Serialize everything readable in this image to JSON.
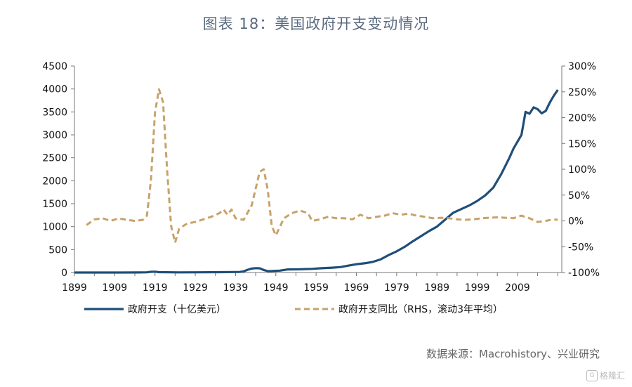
{
  "chart_data": {
    "type": "line",
    "title": "图表 18：美国政府开支变动情况",
    "source": "数据来源：Macrohistory、兴业研究",
    "watermark": "格隆汇",
    "x_ticks": [
      "1899",
      "1909",
      "1919",
      "1929",
      "1939",
      "1949",
      "1959",
      "1969",
      "1979",
      "1989",
      "1999",
      "2009"
    ],
    "xlim": [
      1899,
      2020
    ],
    "y_left": {
      "ylim": [
        0,
        4500
      ],
      "ticks": [
        "0",
        "500",
        "1000",
        "1500",
        "2000",
        "2500",
        "3000",
        "3500",
        "4000",
        "4500"
      ]
    },
    "y_right": {
      "ylim": [
        -100,
        300
      ],
      "ticks": [
        "-100%",
        "-50%",
        "0%",
        "50%",
        "100%",
        "150%",
        "200%",
        "250%",
        "300%"
      ]
    },
    "series": [
      {
        "name": "政府开支（十亿美元）",
        "axis": "left",
        "style": "solid",
        "color": "#1f4e79",
        "points": [
          [
            1899,
            0.5
          ],
          [
            1905,
            0.6
          ],
          [
            1910,
            0.7
          ],
          [
            1915,
            1
          ],
          [
            1917,
            5
          ],
          [
            1918,
            15
          ],
          [
            1919,
            18
          ],
          [
            1920,
            8
          ],
          [
            1925,
            3
          ],
          [
            1930,
            4
          ],
          [
            1935,
            7
          ],
          [
            1939,
            10
          ],
          [
            1940,
            12
          ],
          [
            1941,
            25
          ],
          [
            1942,
            60
          ],
          [
            1943,
            85
          ],
          [
            1944,
            95
          ],
          [
            1945,
            92
          ],
          [
            1946,
            55
          ],
          [
            1947,
            30
          ],
          [
            1948,
            32
          ],
          [
            1950,
            42
          ],
          [
            1952,
            68
          ],
          [
            1955,
            70
          ],
          [
            1958,
            80
          ],
          [
            1960,
            92
          ],
          [
            1963,
            105
          ],
          [
            1965,
            118
          ],
          [
            1967,
            150
          ],
          [
            1969,
            180
          ],
          [
            1971,
            200
          ],
          [
            1973,
            230
          ],
          [
            1975,
            285
          ],
          [
            1977,
            380
          ],
          [
            1979,
            460
          ],
          [
            1981,
            560
          ],
          [
            1983,
            680
          ],
          [
            1985,
            790
          ],
          [
            1987,
            900
          ],
          [
            1989,
            1000
          ],
          [
            1991,
            1150
          ],
          [
            1993,
            1300
          ],
          [
            1995,
            1380
          ],
          [
            1997,
            1460
          ],
          [
            1999,
            1560
          ],
          [
            2001,
            1680
          ],
          [
            2003,
            1850
          ],
          [
            2005,
            2150
          ],
          [
            2007,
            2500
          ],
          [
            2008,
            2700
          ],
          [
            2009,
            2850
          ],
          [
            2010,
            3000
          ],
          [
            2011,
            3500
          ],
          [
            2012,
            3460
          ],
          [
            2013,
            3600
          ],
          [
            2014,
            3560
          ],
          [
            2015,
            3470
          ],
          [
            2016,
            3520
          ],
          [
            2017,
            3700
          ],
          [
            2018,
            3850
          ],
          [
            2019,
            3980
          ]
        ]
      },
      {
        "name": "政府开支同比（RHS，滚动3年平均）",
        "axis": "right",
        "style": "dashed",
        "color": "#c8a26a",
        "points": [
          [
            1902,
            -8
          ],
          [
            1904,
            3
          ],
          [
            1906,
            5
          ],
          [
            1908,
            0
          ],
          [
            1910,
            5
          ],
          [
            1912,
            2
          ],
          [
            1914,
            0
          ],
          [
            1916,
            2
          ],
          [
            1917,
            10
          ],
          [
            1918,
            80
          ],
          [
            1919,
            210
          ],
          [
            1920,
            255
          ],
          [
            1921,
            230
          ],
          [
            1922,
            100
          ],
          [
            1923,
            -10
          ],
          [
            1924,
            -42
          ],
          [
            1925,
            -15
          ],
          [
            1927,
            -5
          ],
          [
            1929,
            -2
          ],
          [
            1931,
            3
          ],
          [
            1933,
            8
          ],
          [
            1935,
            15
          ],
          [
            1936,
            22
          ],
          [
            1937,
            12
          ],
          [
            1938,
            22
          ],
          [
            1939,
            5
          ],
          [
            1941,
            2
          ],
          [
            1943,
            30
          ],
          [
            1945,
            95
          ],
          [
            1946,
            100
          ],
          [
            1947,
            60
          ],
          [
            1948,
            -10
          ],
          [
            1949,
            -28
          ],
          [
            1950,
            -12
          ],
          [
            1951,
            5
          ],
          [
            1953,
            15
          ],
          [
            1955,
            20
          ],
          [
            1957,
            15
          ],
          [
            1958,
            0
          ],
          [
            1960,
            3
          ],
          [
            1962,
            8
          ],
          [
            1964,
            5
          ],
          [
            1966,
            5
          ],
          [
            1968,
            3
          ],
          [
            1970,
            12
          ],
          [
            1972,
            5
          ],
          [
            1974,
            8
          ],
          [
            1976,
            10
          ],
          [
            1978,
            15
          ],
          [
            1980,
            12
          ],
          [
            1982,
            14
          ],
          [
            1984,
            10
          ],
          [
            1986,
            8
          ],
          [
            1988,
            5
          ],
          [
            1990,
            6
          ],
          [
            1992,
            5
          ],
          [
            1994,
            3
          ],
          [
            1996,
            2
          ],
          [
            1998,
            3
          ],
          [
            2000,
            5
          ],
          [
            2002,
            6
          ],
          [
            2004,
            7
          ],
          [
            2006,
            6
          ],
          [
            2008,
            5
          ],
          [
            2009,
            8
          ],
          [
            2010,
            10
          ],
          [
            2012,
            5
          ],
          [
            2014,
            -2
          ],
          [
            2016,
            0
          ],
          [
            2018,
            3
          ],
          [
            2019,
            2
          ]
        ]
      }
    ]
  }
}
